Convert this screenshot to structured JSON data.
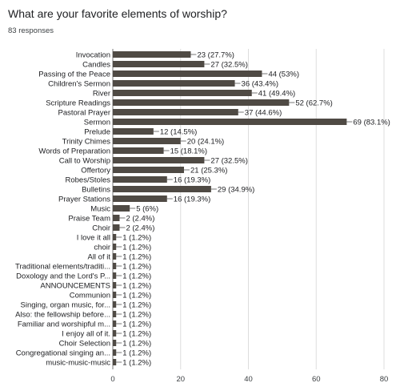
{
  "question": {
    "title": "What are your favorite elements of worship?",
    "responses": "83 responses"
  },
  "colors": {
    "bar": "#4f4a44",
    "grid": "#dddddd",
    "axis": "#777777"
  },
  "chart_data": {
    "type": "bar",
    "orientation": "horizontal",
    "categories": [
      "Invocation",
      "Candles",
      "Passing of the Peace",
      "Children's Sermon",
      "River",
      "Scripture Readings",
      "Pastoral Prayer",
      "Sermon",
      "Prelude",
      "Trinity Chimes",
      "Words of Preparation",
      "Call to Worship",
      "Offertory",
      "Robes/Stoles",
      "Bulletins",
      "Prayer Stations",
      "Music",
      "Praise Team",
      "Choir",
      "I love it all",
      "choir",
      "All of it",
      "Traditional elements/traditi...",
      "Doxology and the Lord's P...",
      "ANNOUNCEMENTS",
      "Communion",
      "Singing, organ music, for...",
      "Also: the fellowship before...",
      "Familiar and worshipful m...",
      "I enjoy all of it.",
      "Choir Selection",
      "Congregational singing an...",
      "music-music-music"
    ],
    "values": [
      23,
      27,
      44,
      36,
      41,
      52,
      37,
      69,
      12,
      20,
      15,
      27,
      21,
      16,
      29,
      16,
      5,
      2,
      2,
      1,
      1,
      1,
      1,
      1,
      1,
      1,
      1,
      1,
      1,
      1,
      1,
      1,
      1
    ],
    "data_labels": [
      "23 (27.7%)",
      "27 (32.5%)",
      "44 (53%)",
      "36 (43.4%)",
      "41 (49.4%)",
      "52 (62.7%)",
      "37 (44.6%)",
      "69 (83.1%)",
      "12 (14.5%)",
      "20 (24.1%)",
      "15 (18.1%)",
      "27 (32.5%)",
      "21 (25.3%)",
      "16 (19.3%)",
      "29 (34.9%)",
      "16 (19.3%)",
      "5 (6%)",
      "2 (2.4%)",
      "2 (2.4%)",
      "1 (1.2%)",
      "1 (1.2%)",
      "1 (1.2%)",
      "1 (1.2%)",
      "1 (1.2%)",
      "1 (1.2%)",
      "1 (1.2%)",
      "1 (1.2%)",
      "1 (1.2%)",
      "1 (1.2%)",
      "1 (1.2%)",
      "1 (1.2%)",
      "1 (1.2%)",
      "1 (1.2%)"
    ],
    "xticks": [
      "0",
      "20",
      "40",
      "60",
      "80"
    ],
    "xlim": [
      0,
      80
    ],
    "grid": true
  }
}
